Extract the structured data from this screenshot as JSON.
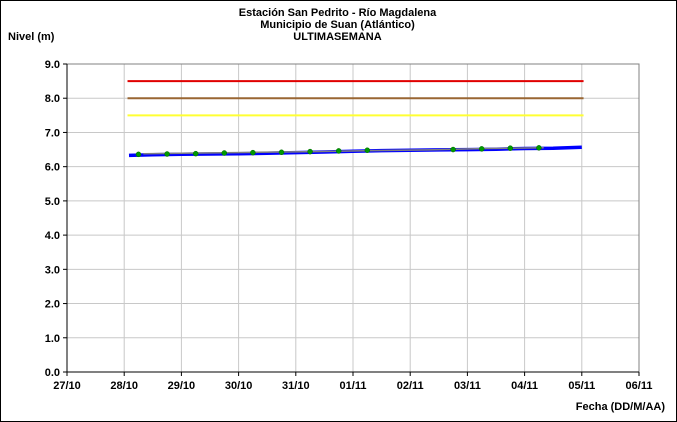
{
  "chart_data": {
    "type": "line",
    "title": "Estación San Pedrito - Río Magdalena",
    "subtitle": "Municipio de Suan (Atlántico)",
    "subtitle2": "ULTIMASEMANA",
    "ylabel": "Nivel (m)",
    "xlabel": "Fecha (DD/M/AA)",
    "ylim": [
      0,
      9
    ],
    "yticks": [
      "0.0",
      "1.0",
      "2.0",
      "3.0",
      "4.0",
      "5.0",
      "6.0",
      "7.0",
      "8.0",
      "9.0"
    ],
    "xlim": [
      "2020-10-27",
      "2020-11-06"
    ],
    "xticks": [
      "27/10",
      "28/10",
      "29/10",
      "30/10",
      "31/10",
      "01/11",
      "02/11",
      "03/11",
      "04/11",
      "05/11",
      "06/11"
    ],
    "grid": true,
    "threshold_lines": [
      {
        "value": 8.5,
        "color": "#e00000"
      },
      {
        "value": 8.0,
        "color": "#996633"
      },
      {
        "value": 7.5,
        "color": "#ffff33"
      }
    ],
    "series": [
      {
        "color": "#0000ff",
        "x": [
          "2020-10-28 02:00",
          "2020-10-28 12:00",
          "2020-10-29 00:00",
          "2020-10-29 12:00",
          "2020-10-30 00:00",
          "2020-10-30 12:00",
          "2020-10-31 00:00",
          "2020-10-31 12:00",
          "2020-11-01 00:00",
          "2020-11-01 12:00",
          "2020-11-02 00:00",
          "2020-11-02 12:00",
          "2020-11-03 00:00",
          "2020-11-03 12:00",
          "2020-11-04 00:00",
          "2020-11-04 12:00",
          "2020-11-05 00:00"
        ],
        "values": [
          6.33,
          6.35,
          6.36,
          6.37,
          6.38,
          6.39,
          6.41,
          6.43,
          6.45,
          6.47,
          6.48,
          6.49,
          6.5,
          6.51,
          6.53,
          6.54,
          6.57
        ]
      },
      {
        "color": "#808080",
        "x": [
          "2020-10-28 08:00",
          "2020-10-29 08:00",
          "2020-10-30 08:00",
          "2020-10-31 08:00",
          "2020-11-01 08:00",
          "2020-11-02 08:00",
          "2020-11-03 08:00",
          "2020-11-04 08:00"
        ],
        "values": [
          6.38,
          6.4,
          6.42,
          6.44,
          6.47,
          6.49,
          6.53,
          6.55
        ]
      }
    ],
    "markers": {
      "color": "#009900",
      "x": [
        "2020-10-28 06:00",
        "2020-10-28 18:00",
        "2020-10-29 06:00",
        "2020-10-29 18:00",
        "2020-10-30 06:00",
        "2020-10-30 18:00",
        "2020-10-31 06:00",
        "2020-10-31 18:00",
        "2020-11-01 06:00",
        "2020-11-02 18:00",
        "2020-11-03 06:00",
        "2020-11-03 18:00",
        "2020-11-04 06:00"
      ],
      "values": [
        6.36,
        6.37,
        6.38,
        6.4,
        6.41,
        6.42,
        6.44,
        6.46,
        6.48,
        6.5,
        6.52,
        6.54,
        6.55
      ]
    }
  }
}
